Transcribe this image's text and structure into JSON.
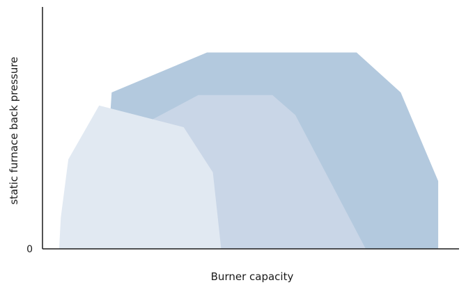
{
  "chart_data": {
    "type": "area",
    "xlabel": "Burner capacity",
    "ylabel": "static furnace back pressure",
    "y_ticks": [
      "0"
    ],
    "grid": false,
    "legend": "none",
    "series": [
      {
        "color": "#b3c9de",
        "points": [
          [
            0.142,
            0.0
          ],
          [
            0.166,
            0.9
          ],
          [
            0.395,
            1.13
          ],
          [
            0.754,
            1.13
          ],
          [
            0.86,
            0.9
          ],
          [
            0.95,
            0.39
          ],
          [
            0.95,
            0.0
          ]
        ]
      },
      {
        "color": "#c9d6e7",
        "points": [
          [
            0.142,
            0.0
          ],
          [
            0.26,
            0.74
          ],
          [
            0.374,
            0.885
          ],
          [
            0.552,
            0.885
          ],
          [
            0.607,
            0.77
          ],
          [
            0.776,
            0.0
          ]
        ]
      },
      {
        "color": "#e1e9f2",
        "points": [
          [
            0.04,
            0.0
          ],
          [
            0.044,
            0.18
          ],
          [
            0.062,
            0.515
          ],
          [
            0.136,
            0.825
          ],
          [
            0.339,
            0.7
          ],
          [
            0.409,
            0.44
          ],
          [
            0.429,
            0.0
          ]
        ]
      }
    ],
    "axes_color": "#1a1a1a"
  }
}
